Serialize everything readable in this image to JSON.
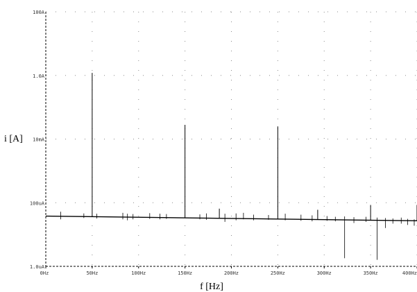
{
  "chart_data": {
    "type": "line",
    "title": "",
    "xlabel": "f [Hz]",
    "ylabel": "i [A]",
    "x_scale": "linear",
    "y_scale": "log",
    "xlim": [
      0,
      400
    ],
    "ylim": [
      1e-06,
      100
    ],
    "grid": true,
    "x_ticks": [
      {
        "value": 0,
        "label": "0Hz"
      },
      {
        "value": 50,
        "label": "50Hz"
      },
      {
        "value": 100,
        "label": "100Hz"
      },
      {
        "value": 150,
        "label": "150Hz"
      },
      {
        "value": 200,
        "label": "200Hz"
      },
      {
        "value": 250,
        "label": "250Hz"
      },
      {
        "value": 300,
        "label": "300Hz"
      },
      {
        "value": 350,
        "label": "350Hz"
      },
      {
        "value": 400,
        "label": "400Hz"
      }
    ],
    "y_ticks": [
      {
        "value": 1e-06,
        "label": "1.0uA"
      },
      {
        "value": 0.0001,
        "label": "100uA"
      },
      {
        "value": 0.01,
        "label": "10mA"
      },
      {
        "value": 1,
        "label": "1.0A"
      },
      {
        "value": 100,
        "label": "100A"
      }
    ],
    "baseline": {
      "x": [
        0,
        400
      ],
      "y": [
        3.8e-05,
        2.7e-05
      ]
    },
    "peaks": [
      {
        "x": 50,
        "y": 1.2
      },
      {
        "x": 150,
        "y": 0.028
      },
      {
        "x": 250,
        "y": 0.025
      },
      {
        "x": 350,
        "y": 8.5e-05
      },
      {
        "x": 400,
        "y": 8.5e-05
      },
      {
        "x": 187,
        "y": 6.5e-05
      },
      {
        "x": 293,
        "y": 6e-05
      }
    ],
    "spikes": [
      {
        "x": 16,
        "up": 5.2e-05,
        "down": 3e-05
      },
      {
        "x": 41,
        "up": 4.6e-05,
        "down": 3.3e-05
      },
      {
        "x": 55,
        "up": 4.5e-05,
        "down": 3.2e-05
      },
      {
        "x": 83,
        "up": 4.8e-05,
        "down": 3e-05
      },
      {
        "x": 88,
        "up": 4.5e-05,
        "down": 2.8e-05
      },
      {
        "x": 94,
        "up": 4.4e-05,
        "down": 3e-05
      },
      {
        "x": 112,
        "up": 4.7e-05,
        "down": 3.1e-05
      },
      {
        "x": 123,
        "up": 4.5e-05,
        "down": 3e-05
      },
      {
        "x": 130,
        "up": 4.4e-05,
        "down": 3.1e-05
      },
      {
        "x": 166,
        "up": 4.3e-05,
        "down": 3e-05
      },
      {
        "x": 173,
        "up": 4.6e-05,
        "down": 2.9e-05
      },
      {
        "x": 193,
        "up": 4.5e-05,
        "down": 2.5e-05
      },
      {
        "x": 205,
        "up": 4.6e-05,
        "down": 2.8e-05
      },
      {
        "x": 213,
        "up": 4.8e-05,
        "down": 3e-05
      },
      {
        "x": 224,
        "up": 4.2e-05,
        "down": 2.8e-05
      },
      {
        "x": 240,
        "up": 4.1e-05,
        "down": 2.9e-05
      },
      {
        "x": 258,
        "up": 4.5e-05,
        "down": 2.8e-05
      },
      {
        "x": 275,
        "up": 4.2e-05,
        "down": 2.7e-05
      },
      {
        "x": 287,
        "up": 4e-05,
        "down": 2.6e-05
      },
      {
        "x": 303,
        "up": 3.8e-05,
        "down": 2.7e-05
      },
      {
        "x": 312,
        "up": 3.6e-05,
        "down": 2.6e-05
      },
      {
        "x": 322,
        "up": 3.7e-05,
        "down": 1.8e-06
      },
      {
        "x": 332,
        "up": 3.5e-05,
        "down": 2.3e-05
      },
      {
        "x": 345,
        "up": 3.6e-05,
        "down": 2.5e-05
      },
      {
        "x": 357,
        "up": 3.4e-05,
        "down": 1.6e-06
      },
      {
        "x": 366,
        "up": 3.3e-05,
        "down": 1.6e-05
      },
      {
        "x": 374,
        "up": 3.2e-05,
        "down": 2.2e-05
      },
      {
        "x": 383,
        "up": 3.4e-05,
        "down": 2.2e-05
      },
      {
        "x": 390,
        "up": 3.1e-05,
        "down": 2e-05
      },
      {
        "x": 397,
        "up": 3e-05,
        "down": 1.9e-05
      }
    ]
  },
  "colors": {
    "trace": "#000000",
    "grid": "#8a8a8a",
    "axis": "#000000"
  }
}
